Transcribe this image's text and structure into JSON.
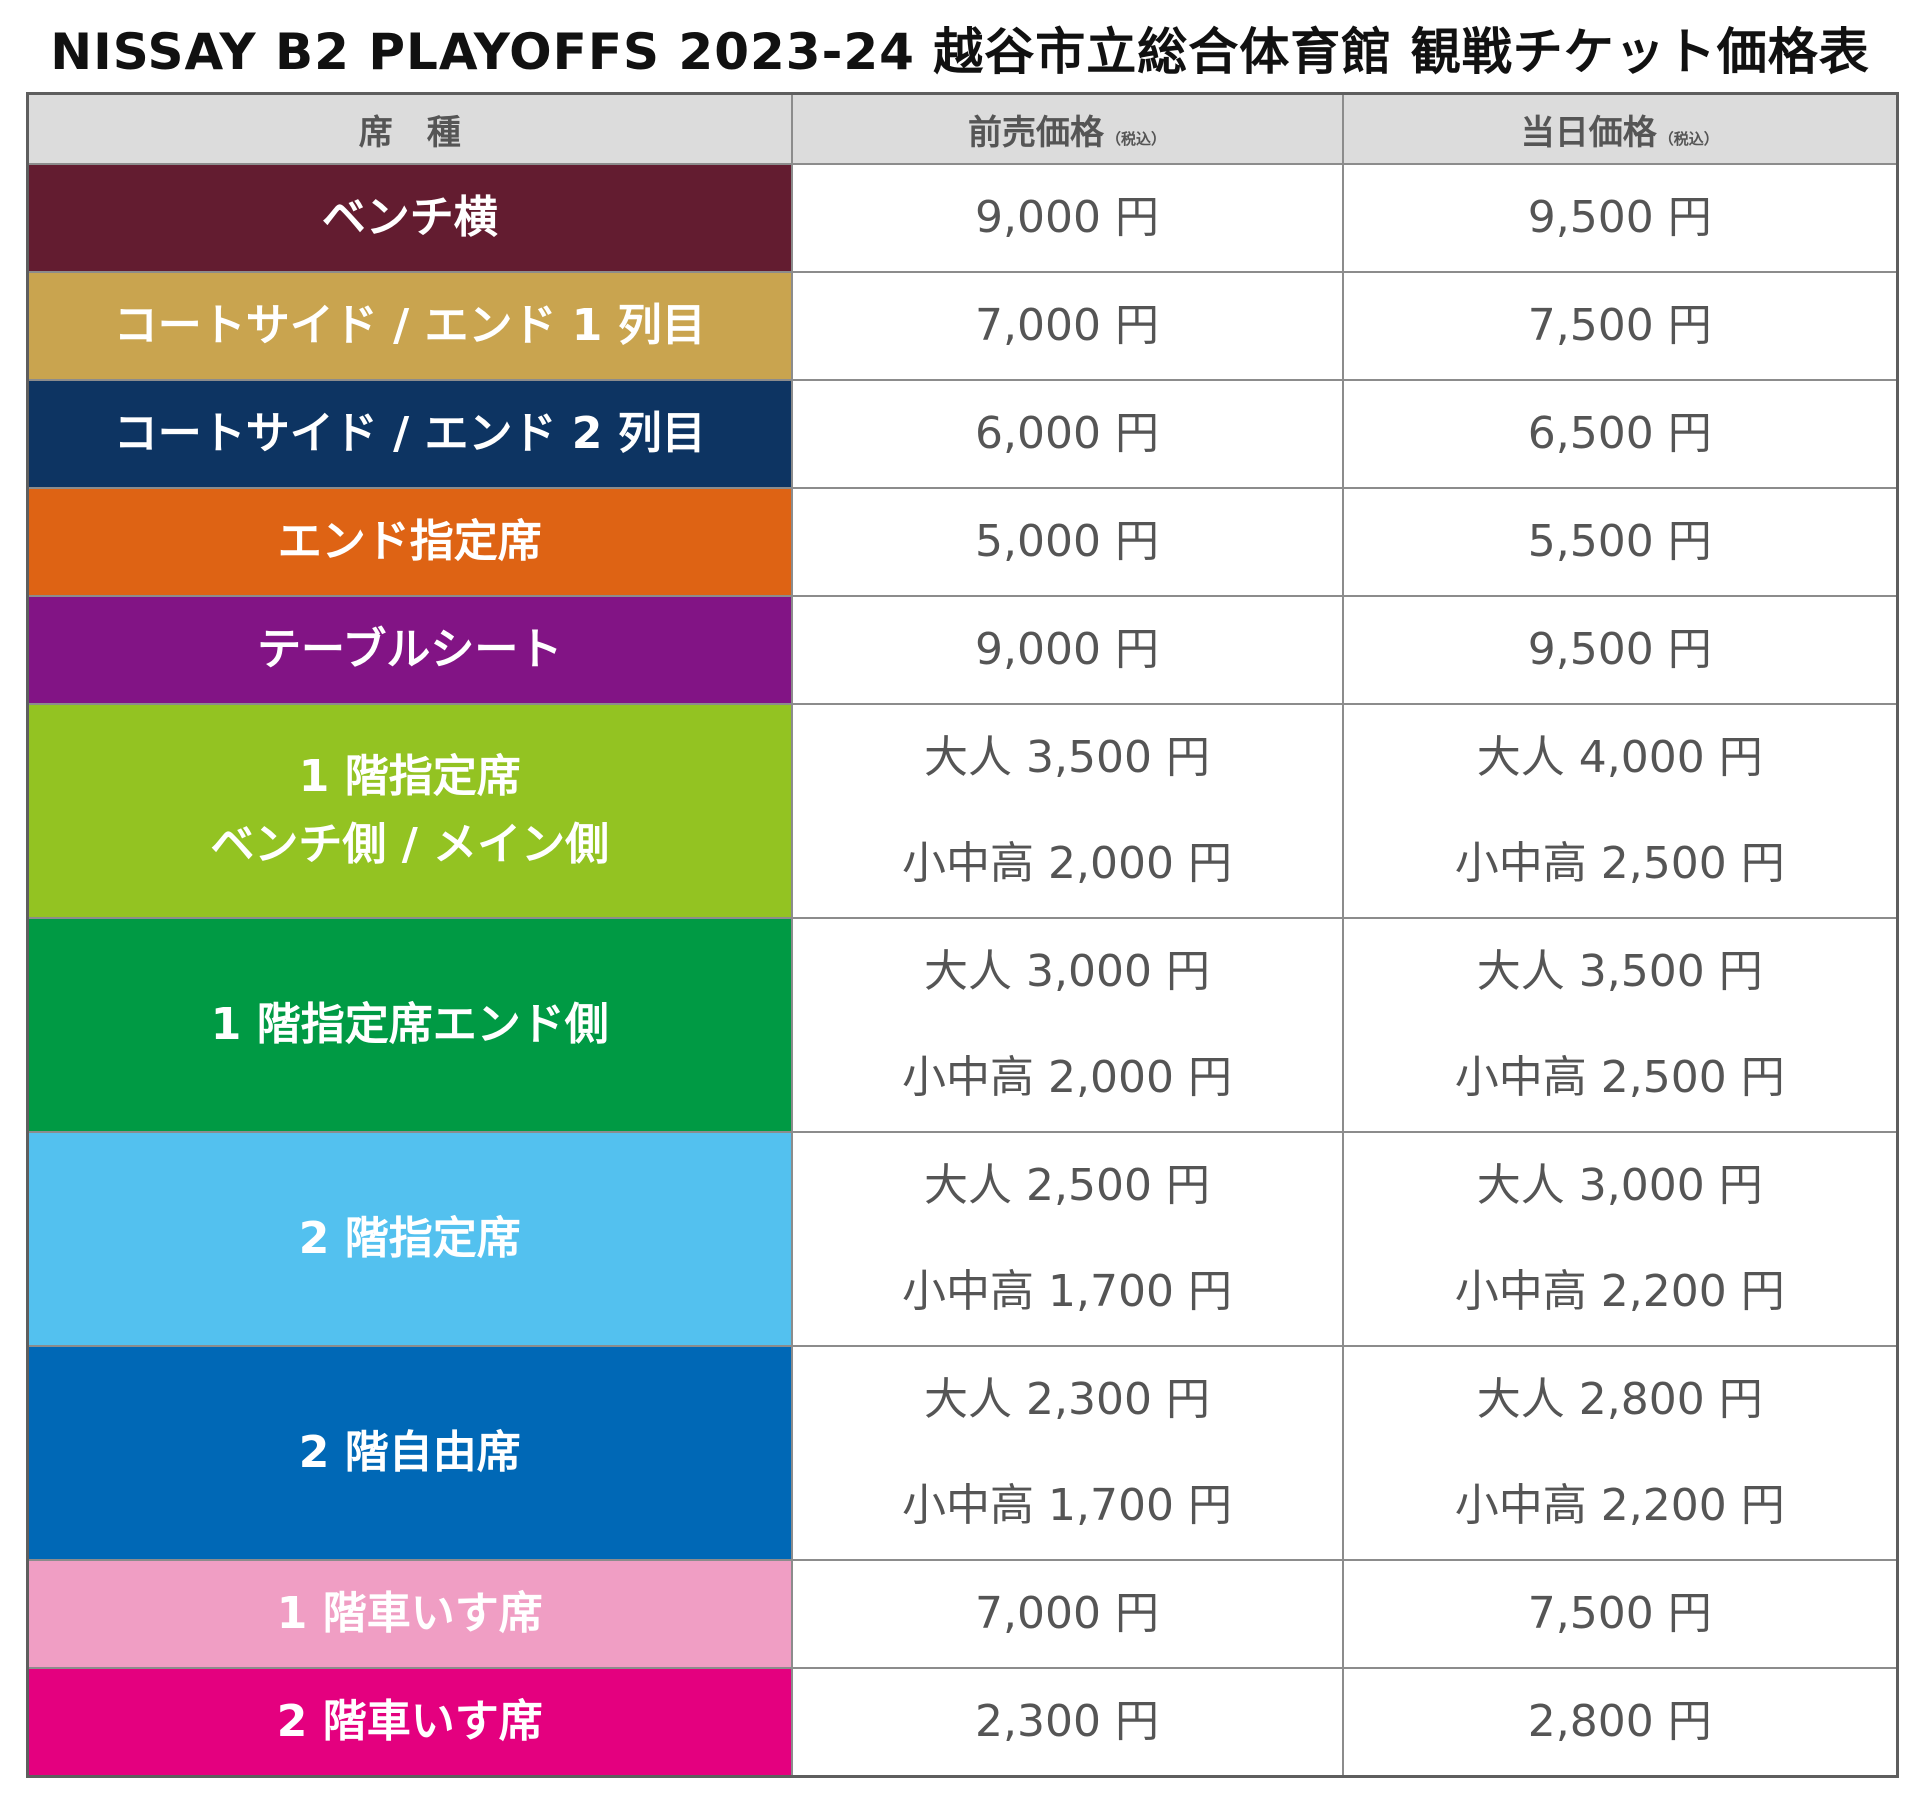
{
  "title": "NISSAY B2 PLAYOFFS 2023-24 越谷市立総合体育館 観戦チケット価格表",
  "table": {
    "headers": {
      "seat": "席　種",
      "advance": "前売価格",
      "advance_note": "（税込）",
      "door": "当日価格",
      "door_note": "（税込）"
    },
    "rows": [
      {
        "seat_lines": [
          "ベンチ横"
        ],
        "color": "#631c30",
        "advance": [
          "9,000 円"
        ],
        "door": [
          "9,500 円"
        ]
      },
      {
        "seat_lines": [
          "コートサイド / エンド 1 列目"
        ],
        "color": "#c9a44f",
        "advance": [
          "7,000 円"
        ],
        "door": [
          "7,500 円"
        ]
      },
      {
        "seat_lines": [
          "コートサイド / エンド 2 列目"
        ],
        "color": "#0d3462",
        "advance": [
          "6,000 円"
        ],
        "door": [
          "6,500 円"
        ]
      },
      {
        "seat_lines": [
          "エンド指定席"
        ],
        "color": "#de6314",
        "advance": [
          "5,000 円"
        ],
        "door": [
          "5,500 円"
        ]
      },
      {
        "seat_lines": [
          "テーブルシート"
        ],
        "color": "#821485",
        "advance": [
          "9,000 円"
        ],
        "door": [
          "9,500 円"
        ]
      },
      {
        "seat_lines": [
          "1 階指定席",
          "ベンチ側 / メイン側"
        ],
        "color": "#93c322",
        "advance": [
          "大人 3,500 円",
          "小中高 2,000 円"
        ],
        "door": [
          "大人 4,000 円",
          "小中高 2,500 円"
        ]
      },
      {
        "seat_lines": [
          "1 階指定席エンド側"
        ],
        "color": "#009a44",
        "advance": [
          "大人 3,000 円",
          "小中高 2,000 円"
        ],
        "door": [
          "大人 3,500 円",
          "小中高 2,500 円"
        ]
      },
      {
        "seat_lines": [
          "2 階指定席"
        ],
        "color": "#53c1ef",
        "advance": [
          "大人 2,500 円",
          "小中高 1,700 円"
        ],
        "door": [
          "大人 3,000 円",
          "小中高 2,200 円"
        ]
      },
      {
        "seat_lines": [
          "2 階自由席"
        ],
        "color": "#0068b6",
        "advance": [
          "大人 2,300 円",
          "小中高 1,700 円"
        ],
        "door": [
          "大人 2,800 円",
          "小中高 2,200 円"
        ]
      },
      {
        "seat_lines": [
          "1 階車いす席"
        ],
        "color": "#f09ec4",
        "advance": [
          "7,000 円"
        ],
        "door": [
          "7,500 円"
        ]
      },
      {
        "seat_lines": [
          "2 階車いす席"
        ],
        "color": "#e4007f",
        "advance": [
          "2,300 円"
        ],
        "door": [
          "2,800 円"
        ]
      }
    ]
  }
}
